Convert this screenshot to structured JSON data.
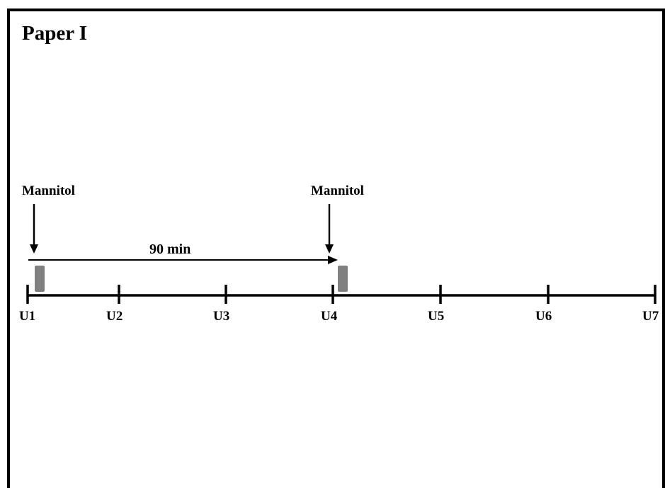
{
  "title": "Paper I",
  "timeline": {
    "ticks": [
      "U1",
      "U2",
      "U3",
      "U4",
      "U5",
      "U6",
      "U7"
    ]
  },
  "events": [
    {
      "label": "Mannitol",
      "at_tick": "U1"
    },
    {
      "label": "Mannitol",
      "at_tick": "U4"
    }
  ],
  "interval": {
    "label": "90 min",
    "from_tick": "U1",
    "to_tick": "U4"
  },
  "colors": {
    "line": "#000000",
    "marker": "#808080",
    "background": "#ffffff"
  }
}
